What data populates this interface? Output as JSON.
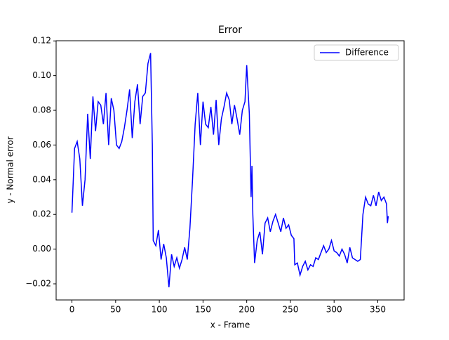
{
  "chart_data": {
    "type": "line",
    "title": "Error",
    "x_label": "x - Frame",
    "y_label": "y - Normal error",
    "x": [
      0,
      3,
      6,
      9,
      12,
      15,
      18,
      21,
      24,
      27,
      30,
      33,
      36,
      39,
      42,
      45,
      48,
      51,
      54,
      57,
      60,
      63,
      66,
      69,
      72,
      75,
      78,
      81,
      84,
      87,
      90,
      92,
      93,
      96,
      99,
      102,
      105,
      108,
      111,
      114,
      117,
      120,
      123,
      126,
      129,
      132,
      135,
      138,
      141,
      144,
      147,
      150,
      153,
      156,
      159,
      162,
      165,
      168,
      171,
      174,
      177,
      180,
      183,
      186,
      189,
      192,
      195,
      198,
      200,
      203,
      205,
      206,
      207,
      209,
      212,
      215,
      218,
      221,
      224,
      227,
      230,
      233,
      236,
      239,
      242,
      245,
      248,
      251,
      254,
      255,
      258,
      261,
      264,
      267,
      270,
      273,
      276,
      279,
      282,
      285,
      288,
      291,
      294,
      297,
      300,
      303,
      306,
      309,
      312,
      315,
      318,
      321,
      324,
      327,
      330,
      333,
      336,
      339,
      342,
      345,
      348,
      351,
      354,
      357,
      360,
      361,
      362
    ],
    "series": [
      {
        "name": "Difference",
        "color": "#0000ff",
        "values": [
          0.021,
          0.058,
          0.062,
          0.052,
          0.025,
          0.04,
          0.078,
          0.052,
          0.088,
          0.068,
          0.085,
          0.083,
          0.072,
          0.09,
          0.06,
          0.087,
          0.08,
          0.06,
          0.058,
          0.062,
          0.07,
          0.08,
          0.092,
          0.064,
          0.085,
          0.095,
          0.072,
          0.088,
          0.09,
          0.107,
          0.113,
          0.06,
          0.005,
          0.002,
          0.011,
          -0.006,
          0.003,
          -0.005,
          -0.022,
          -0.003,
          -0.01,
          -0.005,
          -0.011,
          -0.006,
          0.001,
          -0.006,
          0.012,
          0.04,
          0.072,
          0.09,
          0.06,
          0.085,
          0.072,
          0.07,
          0.082,
          0.066,
          0.086,
          0.06,
          0.075,
          0.082,
          0.09,
          0.086,
          0.072,
          0.083,
          0.075,
          0.066,
          0.08,
          0.085,
          0.106,
          0.078,
          0.03,
          0.048,
          0.02,
          -0.008,
          0.005,
          0.01,
          -0.003,
          0.015,
          0.018,
          0.01,
          0.016,
          0.02,
          0.015,
          0.01,
          0.018,
          0.012,
          0.014,
          0.008,
          0.006,
          -0.009,
          -0.008,
          -0.015,
          -0.01,
          -0.007,
          -0.012,
          -0.009,
          -0.01,
          -0.005,
          -0.006,
          -0.002,
          0.002,
          -0.002,
          0.0,
          0.005,
          -0.001,
          -0.002,
          -0.004,
          0.0,
          -0.003,
          -0.008,
          0.001,
          -0.005,
          -0.006,
          -0.007,
          -0.006,
          0.02,
          0.03,
          0.026,
          0.025,
          0.031,
          0.025,
          0.033,
          0.028,
          0.03,
          0.026,
          0.015,
          0.019
        ]
      }
    ],
    "xlim": [
      -18.1,
      380.1
    ],
    "ylim": [
      -0.0293,
      0.1201
    ],
    "xticks": [
      0,
      50,
      100,
      150,
      200,
      250,
      300,
      350
    ],
    "yticks": [
      {
        "value": -0.02,
        "label": "−0.02"
      },
      {
        "value": 0,
        "label": "0.00"
      },
      {
        "value": 0.02,
        "label": "0.02"
      },
      {
        "value": 0.04,
        "label": "0.04"
      },
      {
        "value": 0.06,
        "label": "0.06"
      },
      {
        "value": 0.08,
        "label": "0.08"
      },
      {
        "value": 0.1,
        "label": "0.10"
      },
      {
        "value": 0.12,
        "label": "0.12"
      }
    ],
    "legend": "upper right"
  }
}
